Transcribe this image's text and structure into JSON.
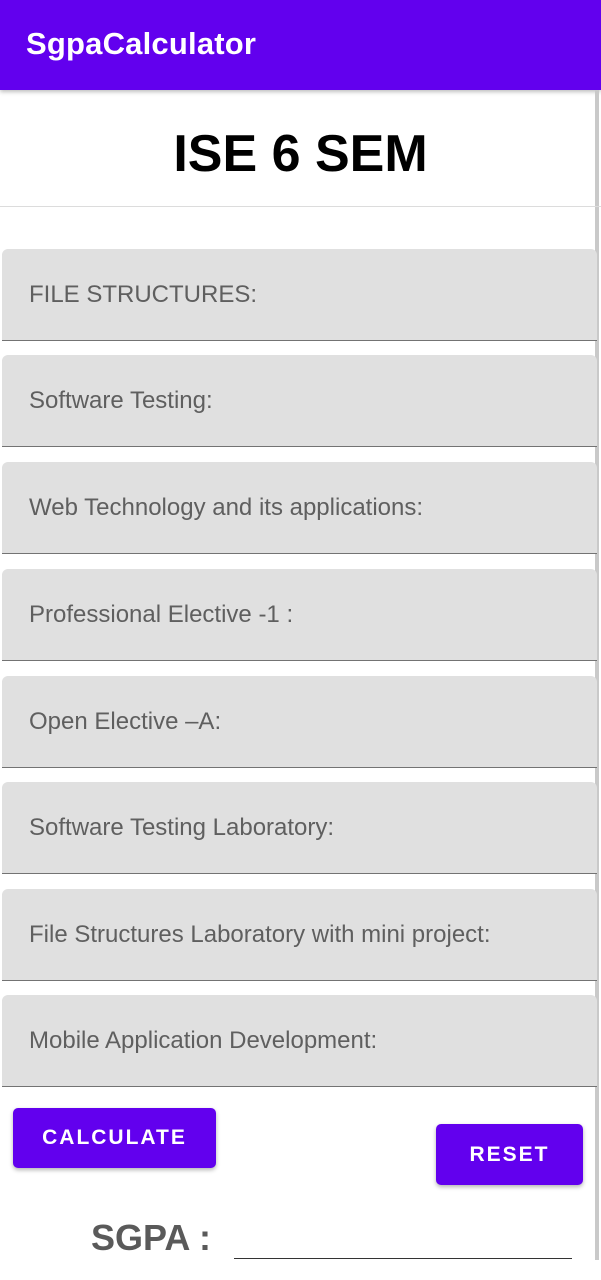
{
  "app_bar": {
    "title": "SgpaCalculator",
    "color": "#6200ee"
  },
  "header": {
    "title": "ISE 6 SEM"
  },
  "subjects": [
    {
      "placeholder": "FILE STRUCTURES:",
      "value": ""
    },
    {
      "placeholder": "Software Testing:",
      "value": ""
    },
    {
      "placeholder": "Web Technology and its applications:",
      "value": ""
    },
    {
      "placeholder": "Professional Elective -1 :",
      "value": ""
    },
    {
      "placeholder": "Open Elective –A:",
      "value": ""
    },
    {
      "placeholder": "Software Testing Laboratory:",
      "value": ""
    },
    {
      "placeholder": "File Structures Laboratory with mini project:",
      "value": ""
    },
    {
      "placeholder": "Mobile Application Development:",
      "value": ""
    }
  ],
  "actions": {
    "calculate_label": "CALCULATE",
    "reset_label": "RESET"
  },
  "result": {
    "label": "SGPA :",
    "value": ""
  }
}
